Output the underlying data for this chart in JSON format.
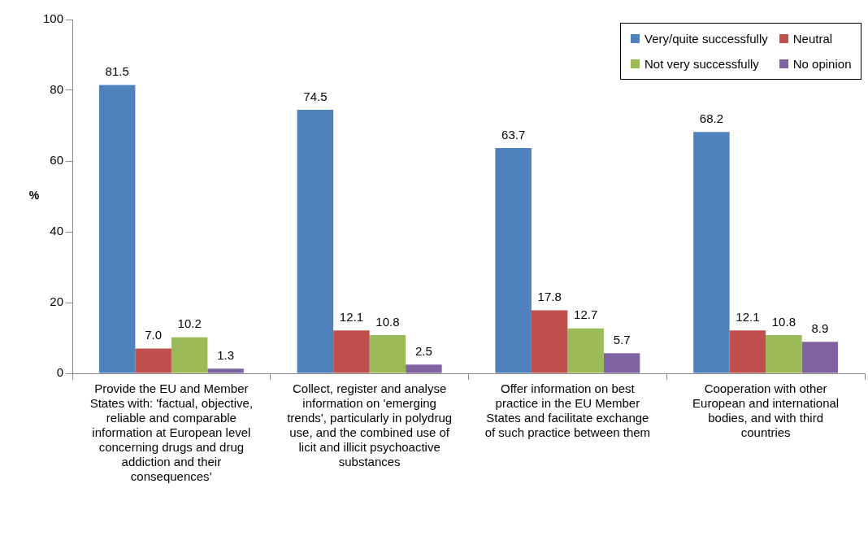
{
  "chart_data": {
    "type": "bar",
    "ylabel": "%",
    "categories": [
      "Provide the EU and Member States with: 'factual, objective, reliable and comparable information at European level concerning drugs and drug addiction and their consequences’",
      "Collect, register and analyse information on 'emerging trends', particularly in polydrug use, and the combined use of licit and illicit psychoactive substances",
      "Offer information on best practice in the EU Member States and facilitate exchange of such practice between them",
      "Cooperation with other European and international bodies, and with third countries"
    ],
    "series": [
      {
        "name": "Very/quite successfully",
        "color": "#4f81bd",
        "values": [
          81.5,
          74.5,
          63.7,
          68.2
        ],
        "value_labels": [
          "81.5",
          "74.5",
          "63.7",
          "68.2"
        ]
      },
      {
        "name": "Neutral",
        "color": "#c0504d",
        "values": [
          7.0,
          12.1,
          17.8,
          12.1
        ],
        "value_labels": [
          "7.0",
          "12.1",
          "17.8",
          "12.1"
        ]
      },
      {
        "name": "Not very successfully",
        "color": "#9bbb59",
        "values": [
          10.2,
          10.8,
          12.7,
          10.8
        ],
        "value_labels": [
          "10.2",
          "10.8",
          "12.7",
          "10.8"
        ]
      },
      {
        "name": "No opinion",
        "color": "#8064a2",
        "values": [
          1.3,
          2.5,
          5.7,
          8.9
        ],
        "value_labels": [
          "1.3",
          "2.5",
          "5.7",
          "8.9"
        ]
      }
    ],
    "ylim": [
      0,
      100
    ],
    "yticks": [
      0,
      20,
      40,
      60,
      80,
      100
    ],
    "grid": false,
    "legend": "top right"
  }
}
